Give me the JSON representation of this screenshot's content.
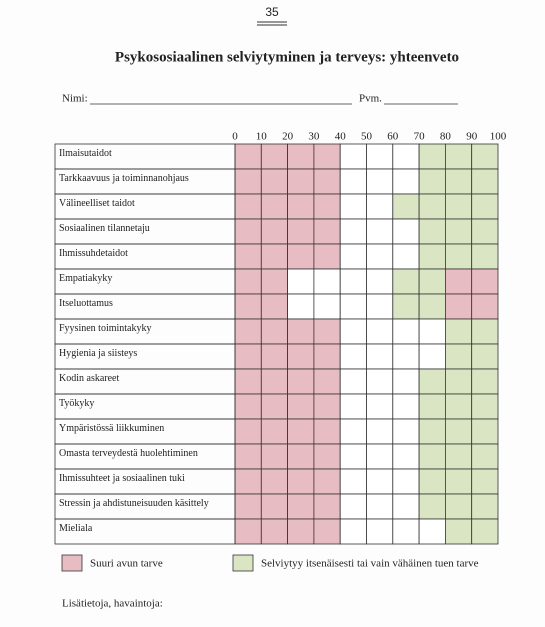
{
  "page_number": "35",
  "title": "Psykososiaalinen selviytyminen ja terveys: yhteenveto",
  "fields": {
    "name": "Nimi:",
    "date": "Pvm."
  },
  "scale": [
    "0",
    "10",
    "20",
    "30",
    "40",
    "50",
    "60",
    "70",
    "80",
    "90",
    "100"
  ],
  "rows": [
    {
      "label": "Ilmaisutaidot",
      "cells": [
        "red",
        "red",
        "red",
        "red",
        "white",
        "white",
        "white",
        "green",
        "green",
        "green"
      ]
    },
    {
      "label": "Tarkkaavuus ja toiminnanohjaus",
      "cells": [
        "red",
        "red",
        "red",
        "red",
        "white",
        "white",
        "white",
        "green",
        "green",
        "green"
      ]
    },
    {
      "label": "Välineelliset taidot",
      "cells": [
        "red",
        "red",
        "red",
        "red",
        "white",
        "white",
        "green",
        "green",
        "green",
        "green"
      ]
    },
    {
      "label": "Sosiaalinen tilannetaju",
      "cells": [
        "red",
        "red",
        "red",
        "red",
        "white",
        "white",
        "white",
        "green",
        "green",
        "green"
      ]
    },
    {
      "label": "Ihmissuhdetaidot",
      "cells": [
        "red",
        "red",
        "red",
        "red",
        "white",
        "white",
        "white",
        "green",
        "green",
        "green"
      ]
    },
    {
      "label": "Empatiakyky",
      "cells": [
        "red",
        "red",
        "white",
        "white",
        "white",
        "white",
        "green",
        "green",
        "red",
        "red"
      ]
    },
    {
      "label": "Itseluottamus",
      "cells": [
        "red",
        "red",
        "white",
        "white",
        "white",
        "white",
        "green",
        "green",
        "red",
        "red"
      ]
    },
    {
      "label": "Fyysinen toimintakyky",
      "cells": [
        "red",
        "red",
        "red",
        "red",
        "white",
        "white",
        "white",
        "white",
        "green",
        "green"
      ]
    },
    {
      "label": "Hygienia ja siisteys",
      "cells": [
        "red",
        "red",
        "red",
        "red",
        "white",
        "white",
        "white",
        "white",
        "green",
        "green"
      ]
    },
    {
      "label": "Kodin askareet",
      "cells": [
        "red",
        "red",
        "red",
        "red",
        "white",
        "white",
        "white",
        "green",
        "green",
        "green"
      ]
    },
    {
      "label": "Työkyky",
      "cells": [
        "red",
        "red",
        "red",
        "red",
        "white",
        "white",
        "white",
        "green",
        "green",
        "green"
      ]
    },
    {
      "label": "Ympäristössä liikkuminen",
      "cells": [
        "red",
        "red",
        "red",
        "red",
        "white",
        "white",
        "white",
        "green",
        "green",
        "green"
      ]
    },
    {
      "label": "Omasta terveydestä huolehtiminen",
      "cells": [
        "red",
        "red",
        "red",
        "red",
        "white",
        "white",
        "white",
        "green",
        "green",
        "green"
      ]
    },
    {
      "label": "Ihmissuhteet ja sosiaalinen tuki",
      "cells": [
        "red",
        "red",
        "red",
        "red",
        "white",
        "white",
        "white",
        "green",
        "green",
        "green"
      ]
    },
    {
      "label": "Stressin ja ahdistuneisuuden käsittely",
      "cells": [
        "red",
        "red",
        "red",
        "red",
        "white",
        "white",
        "white",
        "green",
        "green",
        "green"
      ]
    },
    {
      "label": "Mieliala",
      "cells": [
        "red",
        "red",
        "red",
        "red",
        "white",
        "white",
        "white",
        "white",
        "green",
        "green"
      ]
    }
  ],
  "legend": [
    {
      "color": "red",
      "label": "Suuri avun tarve"
    },
    {
      "color": "green",
      "label": "Selviytyy itsenäisesti tai vain vähäinen tuen tarve"
    }
  ],
  "notes": "Lisätietoja, havaintoja:"
}
